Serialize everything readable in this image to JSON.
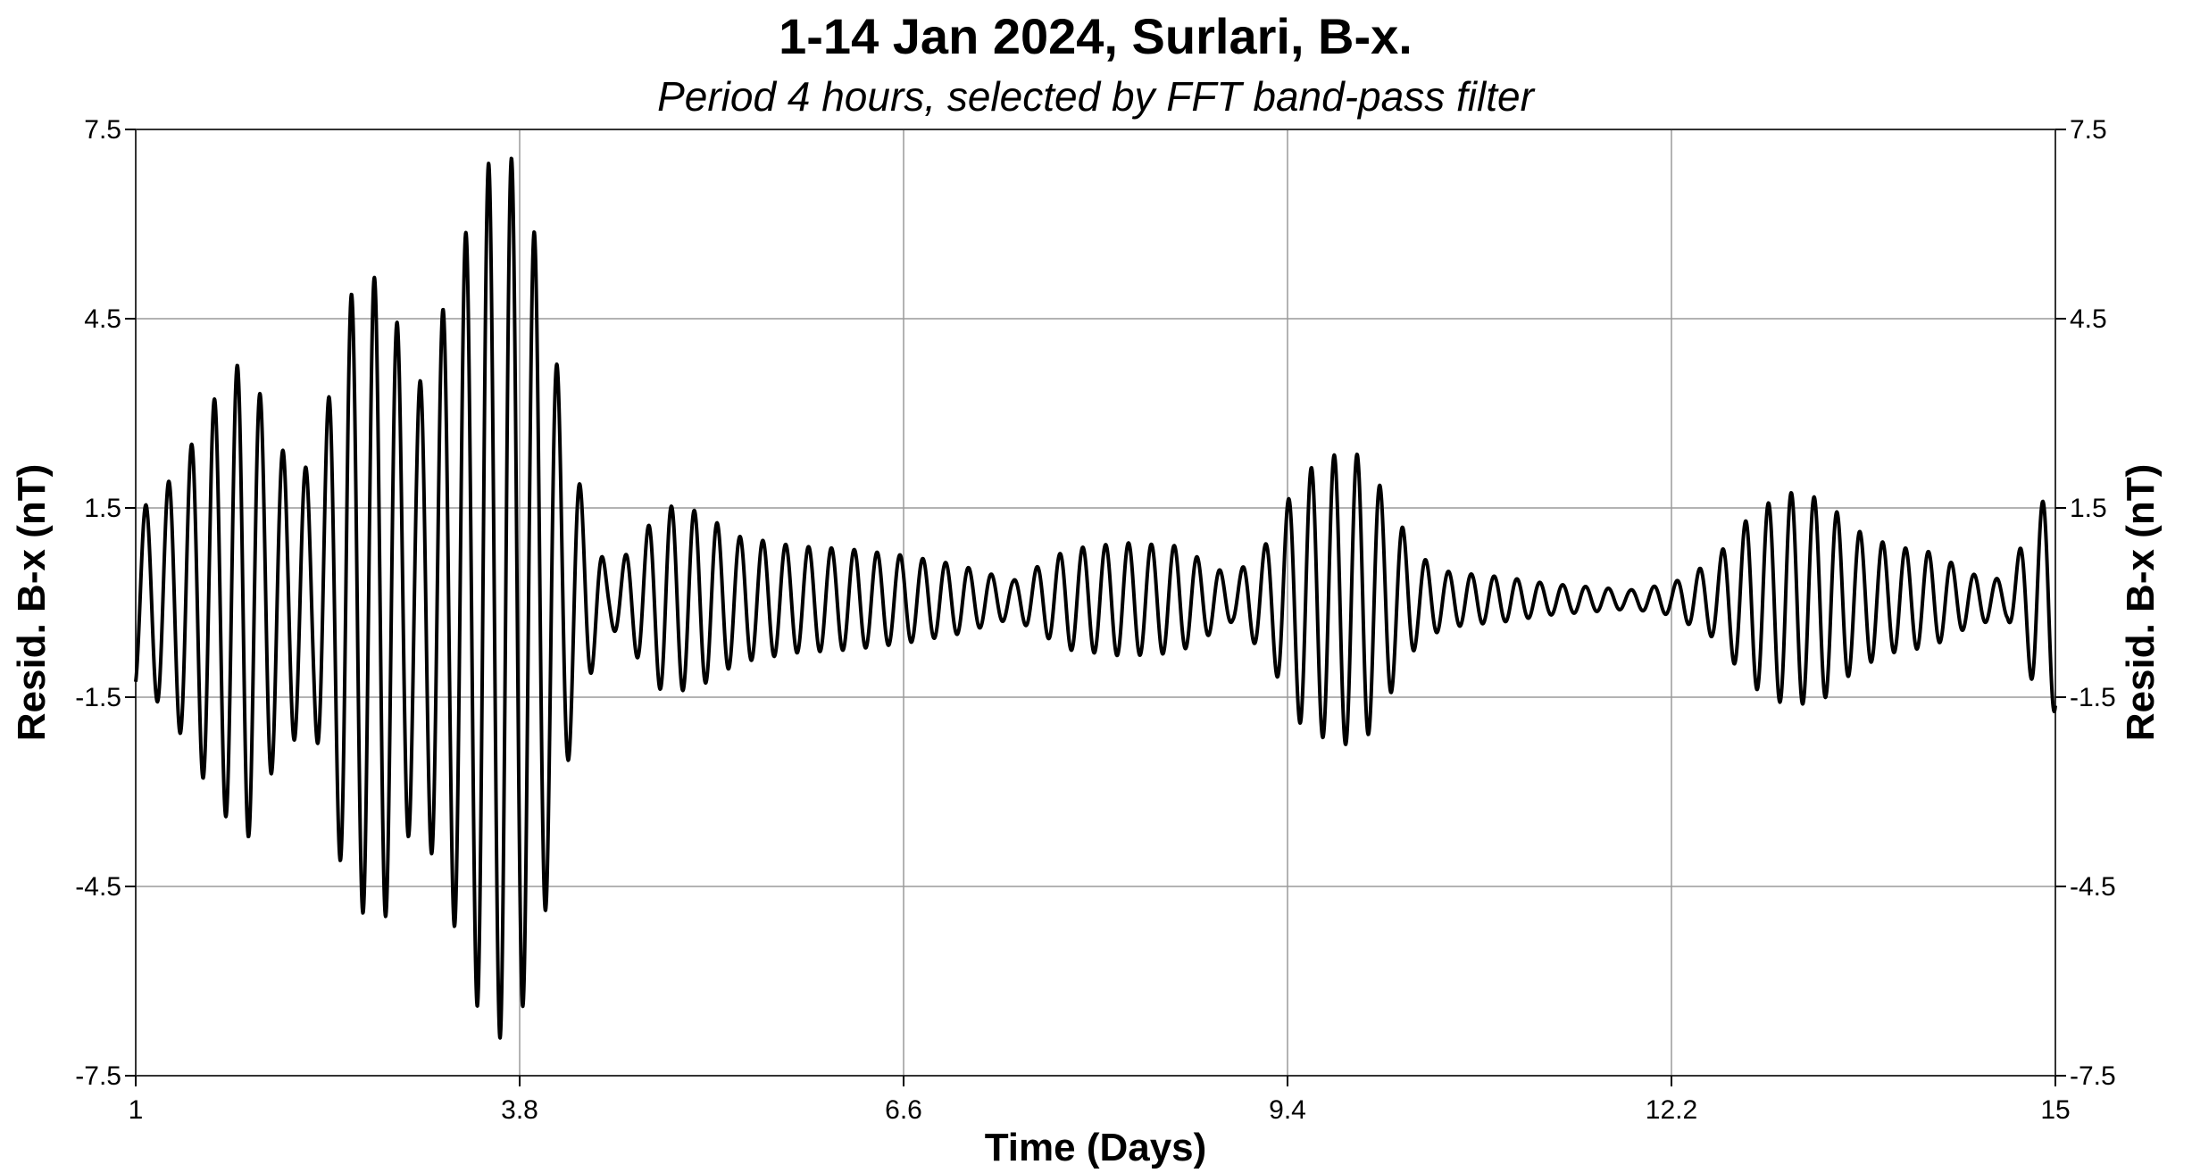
{
  "chart_data": {
    "type": "line",
    "title": "1-14 Jan 2024, Surlari, B-x.",
    "subtitle": "Period 4 hours, selected by FFT band-pass filter",
    "xlabel": "Time (Days)",
    "ylabel": "Resid. B-x (nT)",
    "ylabel_right": "Resid. B-x (nT)",
    "xlim": [
      1,
      15
    ],
    "ylim": [
      -7.5,
      7.5
    ],
    "xticks": [
      1,
      3.8,
      6.6,
      9.4,
      12.2,
      15
    ],
    "xtick_labels": [
      "1",
      "3.8",
      "6.6",
      "9.4",
      "12.2",
      "15"
    ],
    "yticks": [
      7.5,
      4.5,
      1.5,
      -1.5,
      -4.5,
      -7.5
    ],
    "ytick_labels": [
      "7.5",
      "4.5",
      "1.5",
      "-1.5",
      "-4.5",
      "-7.5"
    ],
    "grid": true,
    "series": [
      {
        "color": "#000000",
        "period_days": 0.16667,
        "envelope": {
          "x": [
            1.0,
            1.15,
            1.35,
            1.55,
            1.8,
            2.05,
            2.3,
            2.55,
            2.8,
            3.05,
            3.3,
            3.55,
            3.75,
            3.95,
            4.15,
            4.3,
            4.45,
            4.65,
            4.85,
            5.1,
            5.4,
            5.8,
            6.2,
            6.6,
            7.0,
            7.4,
            7.8,
            8.2,
            8.6,
            9.0,
            9.25,
            9.5,
            9.75,
            9.95,
            10.15,
            10.35,
            10.55,
            10.75,
            11.0,
            11.3,
            11.6,
            11.9,
            12.2,
            12.5,
            12.8,
            13.05,
            13.3,
            13.55,
            13.8,
            14.1,
            14.4,
            14.65,
            14.85,
            15.0
          ],
          "amplitude": [
            1.4,
            1.6,
            2.2,
            3.1,
            3.9,
            2.4,
            2.0,
            4.8,
            5.2,
            3.3,
            5.0,
            6.9,
            7.0,
            5.5,
            2.6,
            1.3,
            0.4,
            0.9,
            1.5,
            1.4,
            1.0,
            0.85,
            0.8,
            0.7,
            0.55,
            0.3,
            0.8,
            0.9,
            0.85,
            0.35,
            0.9,
            2.0,
            2.3,
            2.3,
            1.5,
            0.7,
            0.45,
            0.4,
            0.35,
            0.25,
            0.2,
            0.15,
            0.25,
            0.6,
            1.4,
            1.7,
            1.6,
            1.1,
            0.85,
            0.75,
            0.4,
            0.3,
            1.4,
            1.8
          ]
        },
        "offset": 0.05
      }
    ]
  }
}
